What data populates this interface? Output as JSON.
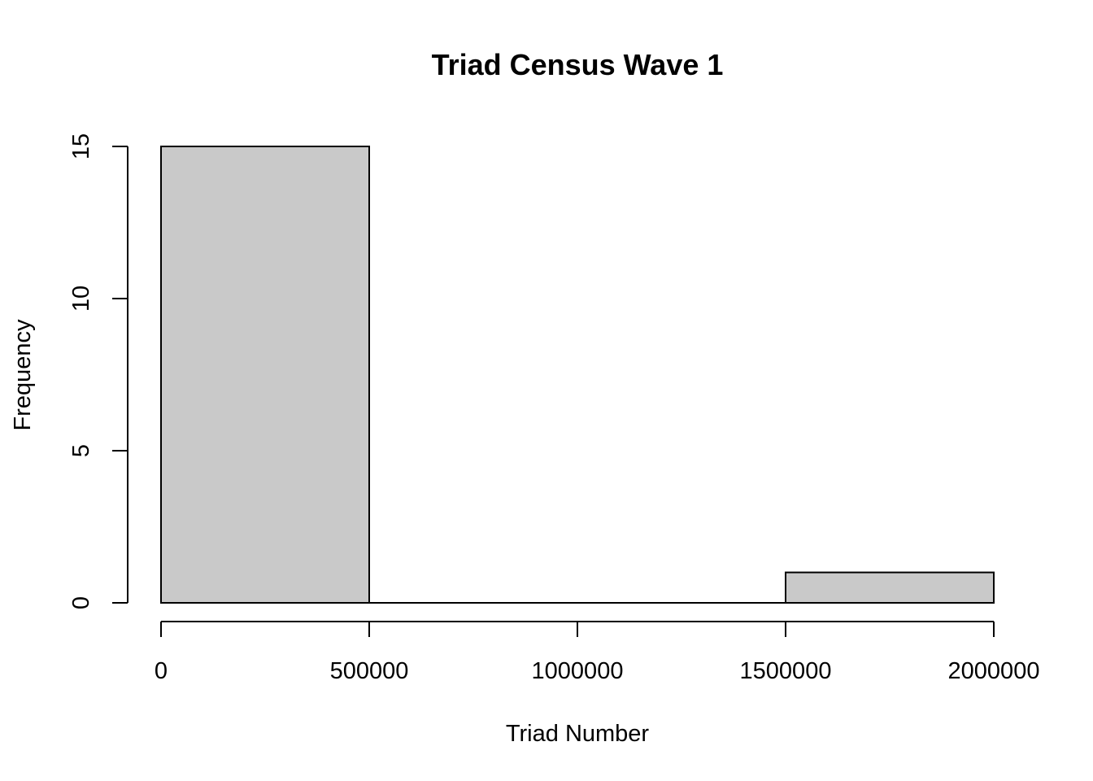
{
  "chart_data": {
    "type": "bar",
    "title": "Triad Census Wave 1",
    "xlabel": "Triad Number",
    "ylabel": "Frequency",
    "bins": [
      {
        "start": 0,
        "end": 500000,
        "count": 15
      },
      {
        "start": 500000,
        "end": 1000000,
        "count": 0
      },
      {
        "start": 1000000,
        "end": 1500000,
        "count": 0
      },
      {
        "start": 1500000,
        "end": 2000000,
        "count": 1
      }
    ],
    "xlim": [
      0,
      2000000
    ],
    "ylim": [
      0,
      15
    ],
    "x_ticks": [
      0,
      500000,
      1000000,
      1500000,
      2000000
    ],
    "x_tick_labels": [
      "0",
      "500000",
      "1000000",
      "1500000",
      "2000000"
    ],
    "y_ticks": [
      0,
      5,
      10,
      15
    ],
    "y_tick_labels": [
      "0",
      "5",
      "10",
      "15"
    ],
    "grid": false,
    "colors": {
      "bar_fill": "#c9c9c9",
      "bar_stroke": "#000000"
    }
  }
}
